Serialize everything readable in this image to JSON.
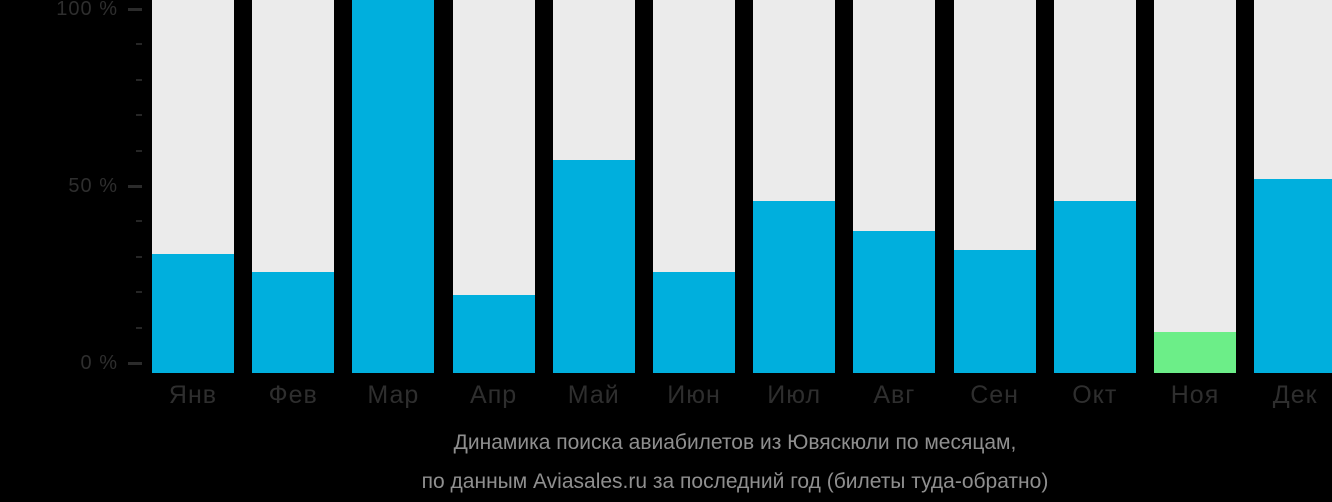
{
  "chart_data": {
    "type": "bar",
    "title_line1": "Динамика поиска авиабилетов из Ювяскюли по месяцам,",
    "title_line2": "по данным Aviasales.ru за последний год (билеты туда-обратно)",
    "categories": [
      "Янв",
      "Фев",
      "Мар",
      "Апр",
      "Май",
      "Июн",
      "Июл",
      "Авг",
      "Сен",
      "Окт",
      "Ноя",
      "Дек"
    ],
    "values": [
      32,
      27,
      100,
      21,
      57,
      27,
      46,
      38,
      33,
      46,
      11,
      52
    ],
    "unit": "%",
    "ylim": [
      0,
      100
    ],
    "y_ticks": [
      {
        "pct": 100,
        "label": "100 %"
      },
      {
        "pct": 50,
        "label": "50 %"
      },
      {
        "pct": 0,
        "label": "0 %"
      }
    ],
    "minor_tick_pcts": [
      90,
      80,
      70,
      60,
      40,
      30,
      20,
      10
    ],
    "highlight_index": 10,
    "legend": "none",
    "grid": "off",
    "colors": {
      "bar": "#00afdd",
      "bar_highlight": "#6cee88",
      "track": "#ebebeb",
      "background": "#000000",
      "axis_text": "#2e2e2e",
      "caption_text": "#8f8f8f"
    }
  }
}
